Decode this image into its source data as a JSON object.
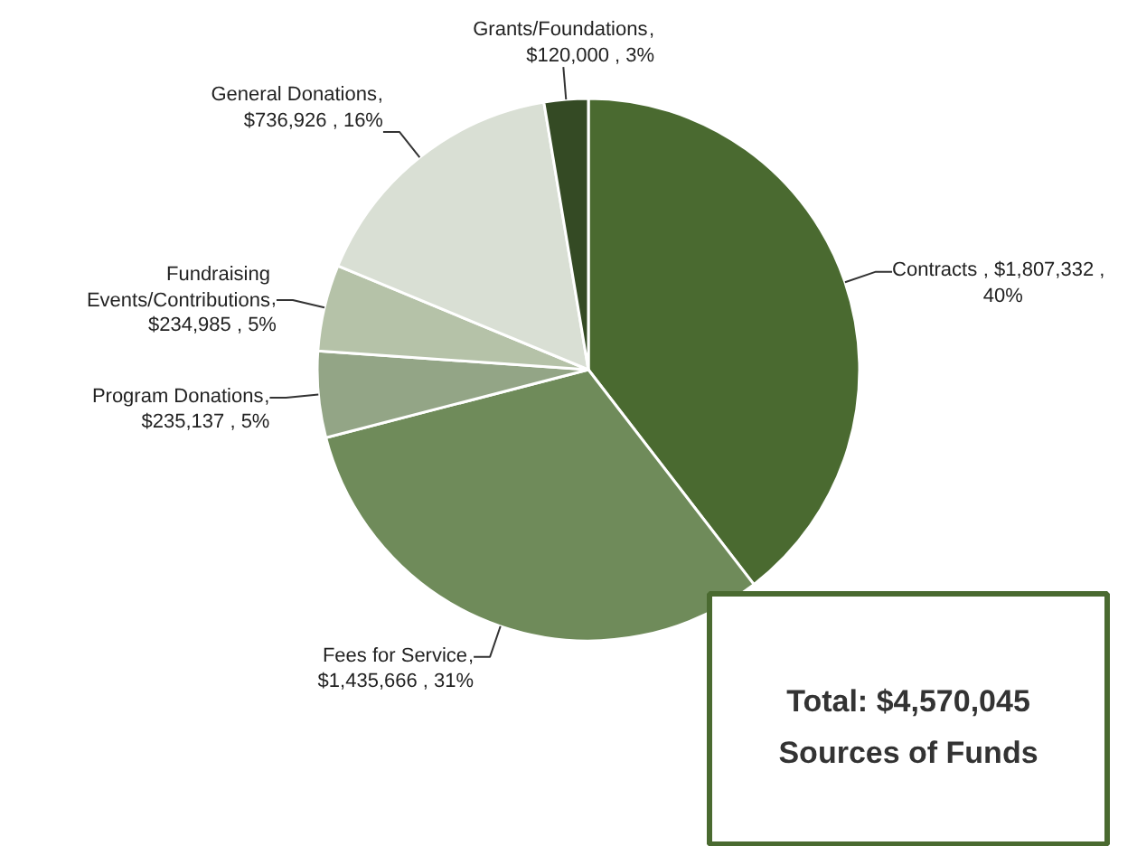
{
  "chart_data": {
    "type": "pie",
    "categories": [
      "Contracts",
      "Fees for Service",
      "Program Donations",
      "Fundraising Events/Contributions",
      "General Donations",
      "Grants/Foundations"
    ],
    "values": [
      1807332,
      1435666,
      235137,
      234985,
      736926,
      120000
    ],
    "colors": [
      "#4a6a30",
      "#6f8b5a",
      "#93a586",
      "#b5c2a8",
      "#d9dfd4",
      "#344a24"
    ],
    "value_labels": [
      ",  $1,807,332 ,\n40%",
      ",\n$1,435,666 , 31%",
      ",\n$235,137 , 5%",
      ",\n$234,985 , 5%",
      ",\n$736,926 , 16%",
      ",\n$120,000 , 3%"
    ],
    "annotations": [
      "Total: $4,570,045\nSources of Funds"
    ]
  }
}
